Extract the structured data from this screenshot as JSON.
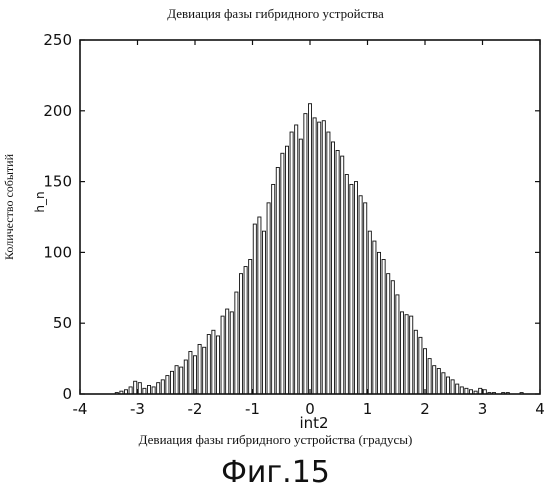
{
  "chart_data": {
    "type": "bar",
    "title": "Девиация фазы гибридного устройства",
    "xlabel_code": "int2",
    "xlabel": "Девиация фазы гибридного устройства (градусы)",
    "ylabel": "Количество событий",
    "ylabel_code": "h_n",
    "xlim": [
      -4,
      4
    ],
    "ylim": [
      0,
      250
    ],
    "xticks": [
      "-4",
      "-3",
      "-2",
      "-1",
      "0",
      "1",
      "2",
      "3",
      "4"
    ],
    "yticks": [
      "0",
      "50",
      "100",
      "150",
      "200",
      "250"
    ],
    "grid": false,
    "bin_width": 0.08,
    "bins": [
      {
        "x": -3.36,
        "count": 1
      },
      {
        "x": -3.28,
        "count": 2
      },
      {
        "x": -3.2,
        "count": 3
      },
      {
        "x": -3.12,
        "count": 5
      },
      {
        "x": -3.04,
        "count": 9
      },
      {
        "x": -2.96,
        "count": 8
      },
      {
        "x": -2.88,
        "count": 4
      },
      {
        "x": -2.8,
        "count": 6
      },
      {
        "x": -2.72,
        "count": 5
      },
      {
        "x": -2.64,
        "count": 8
      },
      {
        "x": -2.56,
        "count": 10
      },
      {
        "x": -2.48,
        "count": 13
      },
      {
        "x": -2.4,
        "count": 16
      },
      {
        "x": -2.32,
        "count": 20
      },
      {
        "x": -2.24,
        "count": 19
      },
      {
        "x": -2.16,
        "count": 24
      },
      {
        "x": -2.08,
        "count": 30
      },
      {
        "x": -2.0,
        "count": 27
      },
      {
        "x": -1.92,
        "count": 35
      },
      {
        "x": -1.84,
        "count": 33
      },
      {
        "x": -1.76,
        "count": 42
      },
      {
        "x": -1.68,
        "count": 45
      },
      {
        "x": -1.6,
        "count": 41
      },
      {
        "x": -1.52,
        "count": 55
      },
      {
        "x": -1.44,
        "count": 60
      },
      {
        "x": -1.36,
        "count": 58
      },
      {
        "x": -1.28,
        "count": 72
      },
      {
        "x": -1.2,
        "count": 85
      },
      {
        "x": -1.12,
        "count": 90
      },
      {
        "x": -1.04,
        "count": 95
      },
      {
        "x": -0.96,
        "count": 120
      },
      {
        "x": -0.88,
        "count": 125
      },
      {
        "x": -0.8,
        "count": 115
      },
      {
        "x": -0.72,
        "count": 135
      },
      {
        "x": -0.64,
        "count": 148
      },
      {
        "x": -0.56,
        "count": 160
      },
      {
        "x": -0.48,
        "count": 170
      },
      {
        "x": -0.4,
        "count": 175
      },
      {
        "x": -0.32,
        "count": 185
      },
      {
        "x": -0.24,
        "count": 190
      },
      {
        "x": -0.16,
        "count": 180
      },
      {
        "x": -0.08,
        "count": 198
      },
      {
        "x": 0.0,
        "count": 205
      },
      {
        "x": 0.08,
        "count": 195
      },
      {
        "x": 0.16,
        "count": 192
      },
      {
        "x": 0.24,
        "count": 193
      },
      {
        "x": 0.32,
        "count": 185
      },
      {
        "x": 0.4,
        "count": 178
      },
      {
        "x": 0.48,
        "count": 172
      },
      {
        "x": 0.56,
        "count": 168
      },
      {
        "x": 0.64,
        "count": 155
      },
      {
        "x": 0.72,
        "count": 148
      },
      {
        "x": 0.8,
        "count": 150
      },
      {
        "x": 0.88,
        "count": 140
      },
      {
        "x": 0.96,
        "count": 135
      },
      {
        "x": 1.04,
        "count": 115
      },
      {
        "x": 1.12,
        "count": 108
      },
      {
        "x": 1.2,
        "count": 100
      },
      {
        "x": 1.28,
        "count": 95
      },
      {
        "x": 1.36,
        "count": 85
      },
      {
        "x": 1.44,
        "count": 80
      },
      {
        "x": 1.52,
        "count": 70
      },
      {
        "x": 1.6,
        "count": 58
      },
      {
        "x": 1.68,
        "count": 56
      },
      {
        "x": 1.76,
        "count": 55
      },
      {
        "x": 1.84,
        "count": 45
      },
      {
        "x": 1.92,
        "count": 40
      },
      {
        "x": 2.0,
        "count": 32
      },
      {
        "x": 2.08,
        "count": 25
      },
      {
        "x": 2.16,
        "count": 20
      },
      {
        "x": 2.24,
        "count": 18
      },
      {
        "x": 2.32,
        "count": 15
      },
      {
        "x": 2.4,
        "count": 12
      },
      {
        "x": 2.48,
        "count": 10
      },
      {
        "x": 2.56,
        "count": 7
      },
      {
        "x": 2.64,
        "count": 5
      },
      {
        "x": 2.72,
        "count": 4
      },
      {
        "x": 2.8,
        "count": 3
      },
      {
        "x": 2.88,
        "count": 2
      },
      {
        "x": 2.96,
        "count": 4
      },
      {
        "x": 3.04,
        "count": 3
      },
      {
        "x": 3.12,
        "count": 1
      },
      {
        "x": 3.2,
        "count": 1
      },
      {
        "x": 3.28,
        "count": 0
      },
      {
        "x": 3.36,
        "count": 1
      },
      {
        "x": 3.44,
        "count": 1
      },
      {
        "x": 3.52,
        "count": 0
      },
      {
        "x": 3.6,
        "count": 0
      },
      {
        "x": 3.68,
        "count": 1
      }
    ]
  },
  "figure_caption": "Фиг.15"
}
